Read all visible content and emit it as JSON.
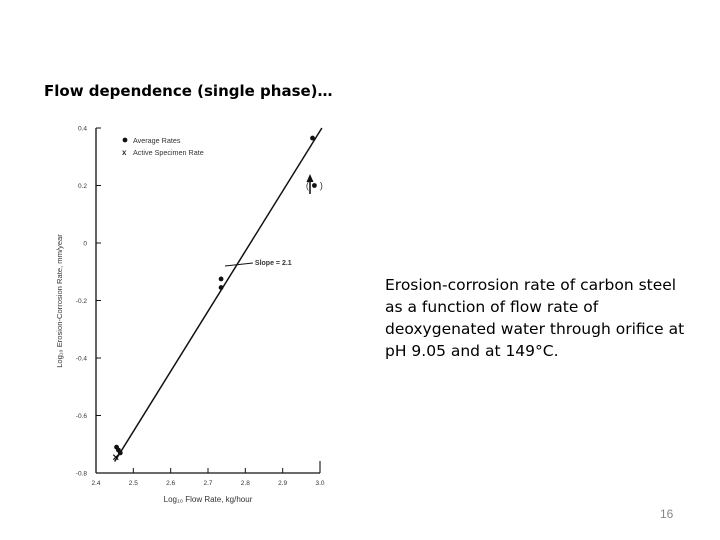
{
  "slide": {
    "title": "Flow dependence (single phase)…",
    "caption": "Erosion-corrosion rate of carbon steel as a function of flow rate of deoxygenated water through orifice at pH 9.05 and at 149°C.",
    "page_number": "16"
  },
  "chart_data": {
    "type": "scatter",
    "xlabel": "Log₁₀ Flow Rate, kg/hour",
    "ylabel": "Log₁₀ Erosion-Corrosion Rate, mm/year",
    "xlim": [
      2.4,
      3.0
    ],
    "ylim": [
      -0.8,
      0.4
    ],
    "x_ticks": [
      "2.4",
      "2.5",
      "2.6",
      "2.7",
      "2.8",
      "2.9",
      "3.0"
    ],
    "y_ticks": [
      "-0.8",
      "-0.6",
      "-0.4",
      "-0.2",
      "0",
      "0.2",
      "0.4"
    ],
    "x_tick_values": [
      2.4,
      2.5,
      2.6,
      2.7,
      2.8,
      2.9,
      3.0
    ],
    "y_tick_values": [
      -0.8,
      -0.6,
      -0.4,
      -0.2,
      0,
      0.2,
      0.4
    ],
    "legend": {
      "position": "top-left",
      "entries": [
        {
          "marker": "dot",
          "label": "Average Rates"
        },
        {
          "marker": "x",
          "label": "Active Specimen Rate"
        }
      ]
    },
    "series": [
      {
        "name": "Average Rates",
        "marker": "dot",
        "points": [
          {
            "x": 2.455,
            "y": -0.71
          },
          {
            "x": 2.46,
            "y": -0.72
          },
          {
            "x": 2.465,
            "y": -0.73
          },
          {
            "x": 2.735,
            "y": -0.125
          },
          {
            "x": 2.735,
            "y": -0.155
          },
          {
            "x": 2.98,
            "y": 0.365
          },
          {
            "x": 2.985,
            "y": 0.2
          }
        ]
      },
      {
        "name": "Active Specimen Rate",
        "marker": "x",
        "points": [
          {
            "x": 2.453,
            "y": -0.745
          }
        ]
      }
    ],
    "fit_line": {
      "x1": 2.45,
      "y1": -0.76,
      "x2": 3.005,
      "y2": 0.4
    },
    "annotation": {
      "text": "Slope = 2.1",
      "x": 2.74,
      "y": -0.08
    }
  }
}
